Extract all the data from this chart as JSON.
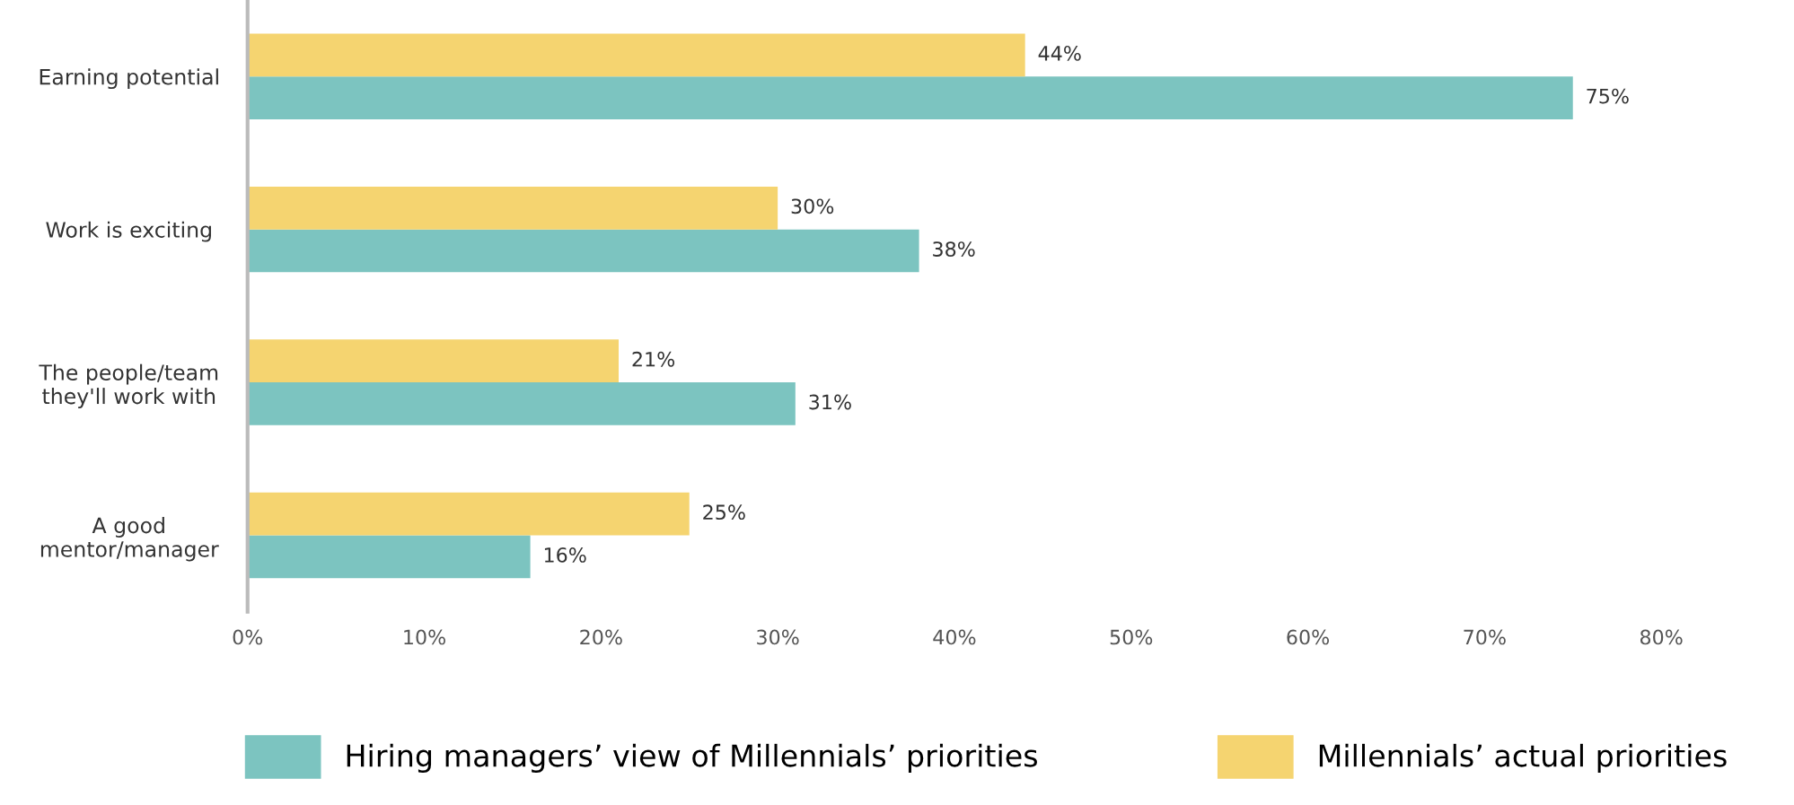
{
  "chart_data": {
    "type": "bar",
    "orientation": "horizontal",
    "categories": [
      "Earning potential",
      "Work is exciting",
      "The people/team\nthey'll work with",
      "A good\nmentor/manager"
    ],
    "series": [
      {
        "name": "Hiring managers’ view of Millennials’ priorities",
        "color": "#7cc4c0",
        "values": [
          75,
          38,
          31,
          16
        ],
        "value_labels": [
          "75%",
          "38%",
          "31%",
          "16%"
        ]
      },
      {
        "name": "Millennials’ actual priorities",
        "color": "#f5d470",
        "values": [
          44,
          30,
          21,
          25
        ],
        "value_labels": [
          "44%",
          "30%",
          "21%",
          "25%"
        ]
      }
    ],
    "xlim": [
      0,
      80
    ],
    "xticks": [
      {
        "value": 0,
        "label": "0%"
      },
      {
        "value": 10,
        "label": "10%"
      },
      {
        "value": 20,
        "label": "20%"
      },
      {
        "value": 30,
        "label": "30%"
      },
      {
        "value": 40,
        "label": "40%"
      },
      {
        "value": 50,
        "label": "50%"
      },
      {
        "value": 60,
        "label": "60%"
      },
      {
        "value": 70,
        "label": "70%"
      },
      {
        "value": 80,
        "label": "80%"
      }
    ],
    "grid": false,
    "legend": "bottom"
  }
}
